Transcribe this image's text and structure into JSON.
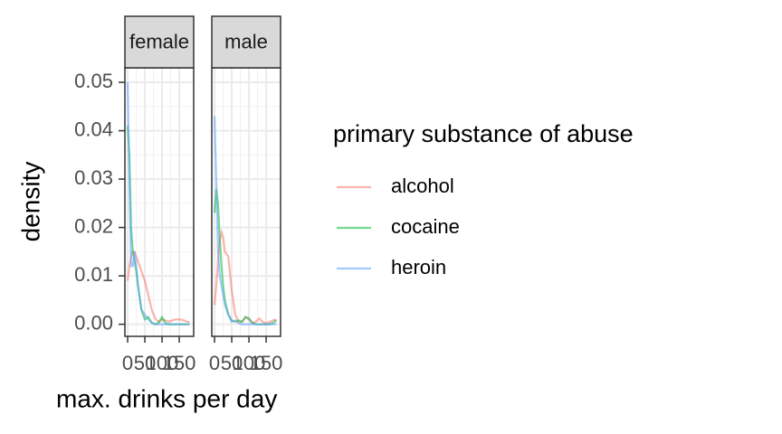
{
  "chart_data": {
    "type": "line",
    "xlabel": "max. drinks per day",
    "ylabel": "density",
    "legend_title": "primary substance of abuse",
    "x": [
      0,
      5,
      10,
      15,
      20,
      25,
      30,
      40,
      50,
      60,
      70,
      80,
      90,
      100,
      110,
      120,
      130,
      140,
      150,
      160,
      170,
      180
    ],
    "xlim": [
      -8,
      192
    ],
    "xticks": [
      0,
      50,
      100,
      150
    ],
    "ylim": [
      -0.0025,
      0.053
    ],
    "yticks": [
      {
        "value": 0,
        "label": "0.00"
      },
      0.01,
      0.02,
      0.03,
      0.04,
      0.05
    ],
    "grid": true,
    "series": [
      {
        "name": "alcohol",
        "color": "#F8766D"
      },
      {
        "name": "cocaine",
        "color": "#00BA38"
      },
      {
        "name": "heroin",
        "color": "#619CFF"
      }
    ],
    "facets": [
      {
        "name": "female",
        "values": [
          [
            0.009,
            0.012,
            0.014,
            0.015,
            0.015,
            0.014,
            0.013,
            0.011,
            0.009,
            0.006,
            0.003,
            0.0012,
            0.0005,
            0.001,
            0.0008,
            0.0005,
            0.0008,
            0.001,
            0.001,
            0.0009,
            0.0006,
            0.0004
          ],
          [
            0.041,
            0.035,
            0.02,
            0.015,
            0.013,
            0.011,
            0.008,
            0.003,
            0.001,
            0.0015,
            0.0003,
            0,
            0.0003,
            0.0015,
            0.0002,
            0,
            0,
            0,
            0,
            0,
            0,
            0
          ],
          [
            0.05,
            0.03,
            0.012,
            0.012,
            0.015,
            0.012,
            0.008,
            0.003,
            0.002,
            0.001,
            0.0003,
            0,
            0,
            0,
            0,
            0,
            0,
            0,
            0,
            0,
            0,
            0
          ]
        ]
      },
      {
        "name": "male",
        "values": [
          [
            0.004,
            0.008,
            0.013,
            0.017,
            0.019,
            0.018,
            0.015,
            0.014,
            0.007,
            0.002,
            0.0005,
            0.0005,
            0.0015,
            0.001,
            0.0002,
            0.0005,
            0.0012,
            0.0005,
            0.0002,
            0.0005,
            0.0008,
            0.001
          ],
          [
            0.023,
            0.028,
            0.025,
            0.018,
            0.012,
            0.008,
            0.005,
            0.002,
            0.0008,
            0.0005,
            0.0008,
            0.0005,
            0.0015,
            0.0012,
            0.0003,
            0,
            0,
            0,
            0,
            0,
            0.0003,
            0.0008
          ],
          [
            0.043,
            0.03,
            0.015,
            0.01,
            0.008,
            0.006,
            0.004,
            0.002,
            0.0005,
            0.0008,
            0.0002,
            0,
            0,
            0,
            0,
            0,
            0,
            0,
            0,
            0,
            0,
            0
          ]
        ]
      }
    ]
  }
}
